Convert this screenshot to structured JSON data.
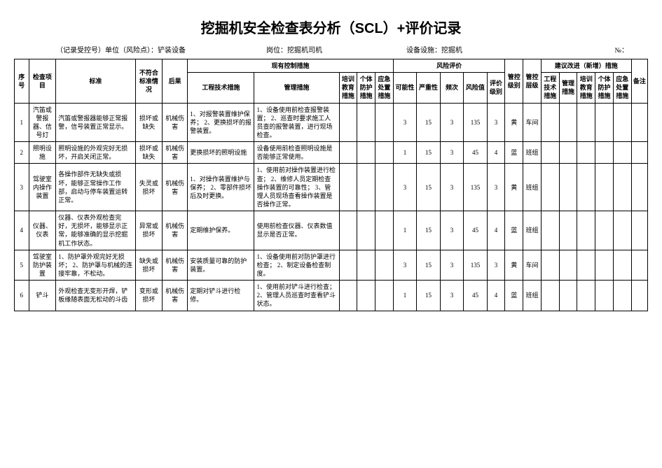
{
  "title": "挖掘机安全检查表分析（SCL）+评价记录",
  "meta": {
    "unit_label": "（记录受控号）单位（风险点）：铲装设备",
    "post_label": "岗位：挖掘机司机",
    "dev_label": "设备设施：挖掘机",
    "no_label": "№："
  },
  "header": {
    "seq": "序号",
    "item": "检查项目",
    "std": "标准",
    "bad": "不符合标准情况",
    "res": "后果",
    "curr": "现有控制措施",
    "eng": "工程技术措施",
    "mgmt": "管理措施",
    "train": "培训教育措施",
    "ppe": "个体防护措施",
    "emr": "应急处置措施",
    "risk": "风险评价",
    "l": "可能性",
    "s": "严重性",
    "f": "频次",
    "r": "风险值",
    "lvl": "评价级别",
    "ctr": "管控级别",
    "clv": "管控层级",
    "sugg": "建议改进（新增）措施",
    "seng": "工程技术措施",
    "smgt": "管理措施",
    "strn": "培训教育措施",
    "sppe": "个体防护措施",
    "semr": "应急处置措施",
    "rem": "备注"
  },
  "rows": [
    {
      "seq": "1",
      "item": "汽笛或警报器、信号灯",
      "std": "汽笛或警报器能够正常报警，信号装置正常显示。",
      "bad": "损坏或缺失",
      "res": "机械伤害",
      "eng": "1、对报警装置维护保养；\n2、更换损坏的报警装置。",
      "mgmt": "1、设备使用前检查报警装置；\n2、巡查时要求施工人员查的报警装置，进行现场检查。",
      "l": "3",
      "s": "15",
      "f": "3",
      "r": "135",
      "lvl": "3",
      "ctr": "黄",
      "clv": "车间"
    },
    {
      "seq": "2",
      "item": "照明设施",
      "std": "照明设施的外观完好无损坏，开启关闭正常。",
      "bad": "损坏或缺失",
      "res": "机械伤害",
      "eng": "更换损坏的照明设施",
      "mgmt": "设备使用前检查照明设施是否能够正常使用。",
      "l": "1",
      "s": "15",
      "f": "3",
      "r": "45",
      "lvl": "4",
      "ctr": "蓝",
      "clv": "班组"
    },
    {
      "seq": "3",
      "item": "驾驶室内操作装置",
      "std": "各操作部件无缺失或损坏，能够正常操作工作部，启动与停车装置运转正常。",
      "bad": "失灵或损坏",
      "res": "机械伤害",
      "eng": "1、对操作装置维护与保养；\n2、零部件损坏后及时更换。",
      "mgmt": "1、使用前对操作装置进行检查；\n2、维修人员定期检查操作装置的可靠性；\n3、管理人员现场查看操作装置是否操作正常。",
      "l": "3",
      "s": "15",
      "f": "3",
      "r": "135",
      "lvl": "3",
      "ctr": "黄",
      "clv": "班组"
    },
    {
      "seq": "4",
      "item": "仪器、仪表",
      "std": "仪器、仪表外观检查完好，无损坏，能够显示正常，能够准确的显示挖掘机工作状态。",
      "bad": "异常或损坏",
      "res": "机械伤害",
      "eng": "定期维护保养。",
      "mgmt": "使用前检查仪器、仪表数值显示是否正常。",
      "l": "1",
      "s": "15",
      "f": "3",
      "r": "45",
      "lvl": "4",
      "ctr": "蓝",
      "clv": "班组"
    },
    {
      "seq": "5",
      "item": "驾驶室防护装置",
      "std": "1、防护罩外观完好无损坏；\n2、防护罩与机械的连接牢靠，不松动。",
      "bad": "缺失或损坏",
      "res": "机械伤害",
      "eng": "安装质量可靠的防护装置。",
      "mgmt": "1、设备使用前对防护罩进行检查；\n2、制定设备检查制度。",
      "l": "3",
      "s": "15",
      "f": "3",
      "r": "135",
      "lvl": "3",
      "ctr": "黄",
      "clv": "车间"
    },
    {
      "seq": "6",
      "item": "铲斗",
      "std": "外观检查无变形开焊，铲板缘随表面无松动的斗齿",
      "bad": "变形或损坏",
      "res": "机械伤害",
      "eng": "定期对铲斗进行检修。",
      "mgmt": "1、使用前对铲斗进行检查；\n2、管理人员巡查时查看铲斗状态。",
      "l": "1",
      "s": "15",
      "f": "3",
      "r": "45",
      "lvl": "4",
      "ctr": "蓝",
      "clv": "班组"
    }
  ]
}
